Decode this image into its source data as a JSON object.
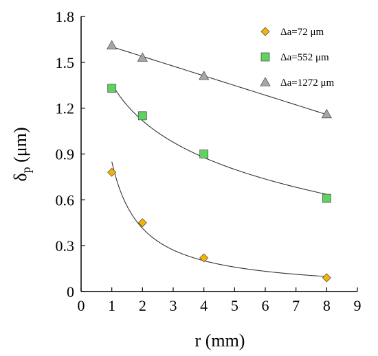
{
  "chart_data": {
    "type": "scatter",
    "title": "",
    "xlabel": "r (mm)",
    "ylabel_main": "δ",
    "ylabel_sub": "p",
    "ylabel_rest": " (μm)",
    "xlim": [
      0,
      9
    ],
    "ylim": [
      0,
      1.8
    ],
    "x_ticks": [
      "0",
      "1",
      "2",
      "3",
      "4",
      "5",
      "6",
      "7",
      "8",
      "9"
    ],
    "y_ticks": [
      "0",
      "0.3",
      "0.6",
      "0.9",
      "1.2",
      "1.5",
      "1.8"
    ],
    "grid": false,
    "legend_position": "top-right",
    "series": [
      {
        "name": "Δa=72 μm",
        "marker": "diamond",
        "color": "#f5b400",
        "x": [
          1,
          2,
          4,
          8
        ],
        "y": [
          0.78,
          0.45,
          0.22,
          0.09
        ],
        "trend": "power",
        "trend_x_range": [
          1,
          8
        ]
      },
      {
        "name": "Δa=552 μm",
        "marker": "square",
        "color": "#5fd35f",
        "x": [
          1,
          2,
          4,
          8
        ],
        "y": [
          1.33,
          1.15,
          0.9,
          0.61
        ],
        "trend": "logarithmic",
        "trend_x_range": [
          1,
          8
        ]
      },
      {
        "name": "Δa=1272 μm",
        "marker": "triangle",
        "color": "#a6a6a6",
        "x": [
          1,
          2,
          4,
          8
        ],
        "y": [
          1.61,
          1.53,
          1.41,
          1.16
        ],
        "trend": "linear",
        "trend_x_range": [
          1,
          8
        ]
      }
    ]
  }
}
